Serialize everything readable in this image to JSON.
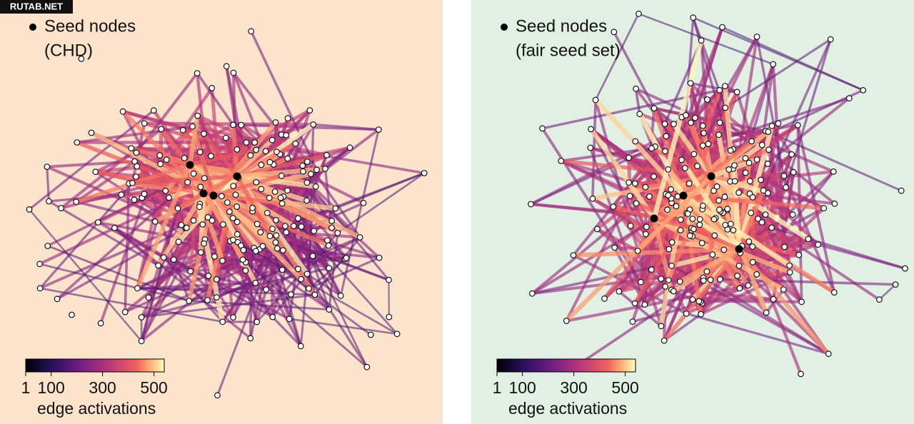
{
  "watermark": "RUTAB.NET",
  "panels": [
    {
      "legend_label": "Seed nodes",
      "legend_sublabel": "(CHD)",
      "background": "#fce4cc",
      "colorbar": {
        "label": "edge activations",
        "lim": [
          1,
          540
        ],
        "ticks": [
          1,
          100,
          300,
          500
        ]
      }
    },
    {
      "legend_label": "Seed nodes",
      "legend_sublabel": "(fair seed set)",
      "background": "#e2f0e4",
      "colorbar": {
        "label": "edge activations",
        "lim": [
          1,
          540
        ],
        "ticks": [
          1,
          100,
          300,
          500
        ]
      }
    }
  ]
}
